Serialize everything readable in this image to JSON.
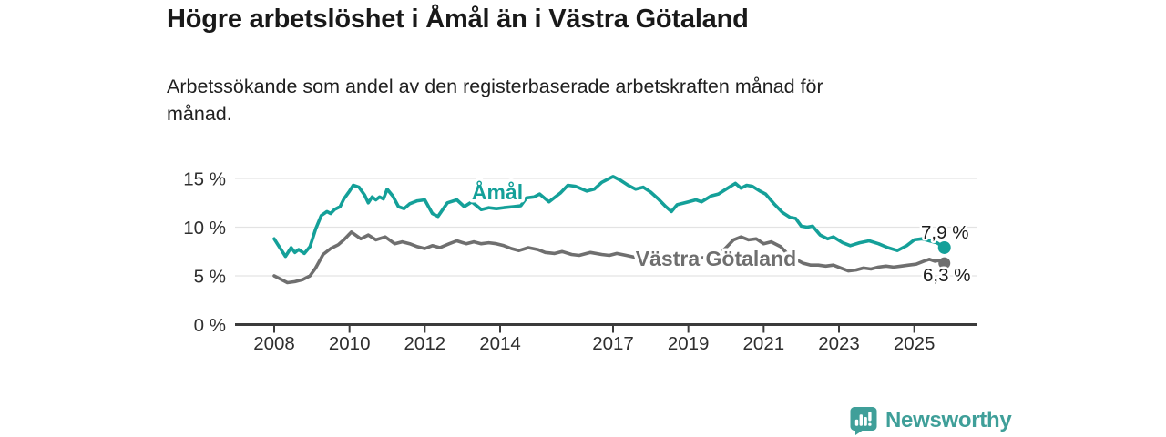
{
  "header": {
    "title": "Högre arbetslöshet i Åmål än i Västra Götaland",
    "subtitle_lines": [
      "Arbetssökande som andel av den registerbaserade arbetskraften månad för",
      "månad."
    ]
  },
  "chart_data": {
    "type": "line",
    "title": "Högre arbetslöshet i Åmål än i Västra Götaland",
    "subtitle": "Arbetssökande som andel av den registerbaserade arbetskraften månad för månad.",
    "unit": "% av registerbaserad arbetskraft",
    "grid": true,
    "legend_position": "inline-labels",
    "x_axis": {
      "ticks": [
        2008,
        2010,
        2012,
        2014,
        2017,
        2019,
        2021,
        2023,
        2025
      ],
      "range": [
        2007.9,
        2026.4
      ]
    },
    "y_axis": {
      "ticks": [
        {
          "value": 0,
          "label": "0 %"
        },
        {
          "value": 5,
          "label": "5 %"
        },
        {
          "value": 10,
          "label": "10 %"
        },
        {
          "value": 15,
          "label": "15 %"
        }
      ],
      "range": [
        0,
        16.5
      ]
    },
    "series": [
      {
        "key": "vastra-gotaland",
        "name": "Västra Götaland",
        "color": "#6f6f6f",
        "inline_label": "Västra Götaland",
        "end_label": "6,3 %",
        "end_value": 6.3,
        "points": [
          [
            2008.0,
            5.0
          ],
          [
            2008.15,
            4.7
          ],
          [
            2008.35,
            4.3
          ],
          [
            2008.55,
            4.4
          ],
          [
            2008.75,
            4.6
          ],
          [
            2008.95,
            5.0
          ],
          [
            2009.1,
            5.8
          ],
          [
            2009.3,
            7.2
          ],
          [
            2009.5,
            7.8
          ],
          [
            2009.7,
            8.2
          ],
          [
            2009.85,
            8.7
          ],
          [
            2010.05,
            9.5
          ],
          [
            2010.3,
            8.8
          ],
          [
            2010.5,
            9.2
          ],
          [
            2010.7,
            8.7
          ],
          [
            2010.95,
            9.0
          ],
          [
            2011.2,
            8.3
          ],
          [
            2011.4,
            8.5
          ],
          [
            2011.6,
            8.3
          ],
          [
            2011.8,
            8.0
          ],
          [
            2012.0,
            7.8
          ],
          [
            2012.2,
            8.1
          ],
          [
            2012.4,
            7.9
          ],
          [
            2012.65,
            8.3
          ],
          [
            2012.85,
            8.6
          ],
          [
            2013.1,
            8.3
          ],
          [
            2013.3,
            8.5
          ],
          [
            2013.5,
            8.3
          ],
          [
            2013.7,
            8.4
          ],
          [
            2013.9,
            8.3
          ],
          [
            2014.1,
            8.1
          ],
          [
            2014.3,
            7.8
          ],
          [
            2014.5,
            7.6
          ],
          [
            2014.75,
            7.9
          ],
          [
            2015.0,
            7.7
          ],
          [
            2015.2,
            7.4
          ],
          [
            2015.45,
            7.3
          ],
          [
            2015.65,
            7.5
          ],
          [
            2015.9,
            7.2
          ],
          [
            2016.1,
            7.1
          ],
          [
            2016.4,
            7.4
          ],
          [
            2016.7,
            7.2
          ],
          [
            2016.9,
            7.1
          ],
          [
            2017.1,
            7.3
          ],
          [
            2017.35,
            7.1
          ],
          [
            2017.6,
            6.9
          ],
          [
            2017.8,
            7.0
          ],
          [
            2018.0,
            7.1
          ],
          [
            2018.3,
            6.9
          ],
          [
            2018.6,
            6.8
          ],
          [
            2018.9,
            6.9
          ],
          [
            2019.2,
            6.8
          ],
          [
            2019.5,
            6.9
          ],
          [
            2019.8,
            7.1
          ],
          [
            2020.0,
            7.9
          ],
          [
            2020.2,
            8.7
          ],
          [
            2020.4,
            9.0
          ],
          [
            2020.6,
            8.7
          ],
          [
            2020.8,
            8.8
          ],
          [
            2021.0,
            8.3
          ],
          [
            2021.2,
            8.5
          ],
          [
            2021.45,
            8.0
          ],
          [
            2021.65,
            7.2
          ],
          [
            2021.85,
            6.7
          ],
          [
            2022.05,
            6.3
          ],
          [
            2022.25,
            6.1
          ],
          [
            2022.45,
            6.1
          ],
          [
            2022.65,
            6.0
          ],
          [
            2022.85,
            6.1
          ],
          [
            2023.05,
            5.8
          ],
          [
            2023.25,
            5.5
          ],
          [
            2023.45,
            5.6
          ],
          [
            2023.65,
            5.8
          ],
          [
            2023.85,
            5.7
          ],
          [
            2024.05,
            5.9
          ],
          [
            2024.25,
            6.0
          ],
          [
            2024.45,
            5.9
          ],
          [
            2024.65,
            6.0
          ],
          [
            2024.85,
            6.1
          ],
          [
            2025.05,
            6.2
          ],
          [
            2025.25,
            6.5
          ],
          [
            2025.4,
            6.7
          ],
          [
            2025.55,
            6.5
          ],
          [
            2025.7,
            6.6
          ],
          [
            2025.8,
            6.3
          ]
        ]
      },
      {
        "key": "amal",
        "name": "Åmål",
        "color": "#14a099",
        "inline_label": "Åmål",
        "end_label": "7,9 %",
        "end_value": 7.9,
        "points": [
          [
            2008.0,
            8.8
          ],
          [
            2008.1,
            8.2
          ],
          [
            2008.3,
            7.0
          ],
          [
            2008.45,
            7.9
          ],
          [
            2008.55,
            7.4
          ],
          [
            2008.65,
            7.7
          ],
          [
            2008.8,
            7.3
          ],
          [
            2008.95,
            8.0
          ],
          [
            2009.1,
            9.8
          ],
          [
            2009.25,
            11.2
          ],
          [
            2009.4,
            11.6
          ],
          [
            2009.5,
            11.4
          ],
          [
            2009.6,
            11.8
          ],
          [
            2009.75,
            12.1
          ],
          [
            2009.85,
            12.9
          ],
          [
            2010.0,
            13.7
          ],
          [
            2010.1,
            14.3
          ],
          [
            2010.25,
            14.1
          ],
          [
            2010.4,
            13.3
          ],
          [
            2010.5,
            12.5
          ],
          [
            2010.6,
            13.1
          ],
          [
            2010.7,
            12.8
          ],
          [
            2010.8,
            13.1
          ],
          [
            2010.9,
            12.9
          ],
          [
            2011.0,
            13.9
          ],
          [
            2011.15,
            13.2
          ],
          [
            2011.3,
            12.1
          ],
          [
            2011.45,
            11.9
          ],
          [
            2011.6,
            12.4
          ],
          [
            2011.8,
            12.7
          ],
          [
            2012.0,
            12.8
          ],
          [
            2012.2,
            11.4
          ],
          [
            2012.35,
            11.1
          ],
          [
            2012.6,
            12.5
          ],
          [
            2012.85,
            12.8
          ],
          [
            2013.05,
            12.1
          ],
          [
            2013.25,
            12.6
          ],
          [
            2013.5,
            11.8
          ],
          [
            2013.7,
            12.0
          ],
          [
            2013.9,
            11.9
          ],
          [
            2014.1,
            12.0
          ],
          [
            2014.35,
            12.1
          ],
          [
            2014.55,
            12.2
          ],
          [
            2014.7,
            13.0
          ],
          [
            2014.9,
            13.1
          ],
          [
            2015.05,
            13.4
          ],
          [
            2015.3,
            12.6
          ],
          [
            2015.6,
            13.5
          ],
          [
            2015.8,
            14.3
          ],
          [
            2016.0,
            14.2
          ],
          [
            2016.3,
            13.7
          ],
          [
            2016.5,
            13.9
          ],
          [
            2016.7,
            14.6
          ],
          [
            2017.0,
            15.2
          ],
          [
            2017.2,
            14.8
          ],
          [
            2017.4,
            14.3
          ],
          [
            2017.6,
            13.9
          ],
          [
            2017.8,
            14.1
          ],
          [
            2018.0,
            13.6
          ],
          [
            2018.2,
            12.9
          ],
          [
            2018.4,
            12.1
          ],
          [
            2018.55,
            11.6
          ],
          [
            2018.7,
            12.3
          ],
          [
            2019.0,
            12.6
          ],
          [
            2019.2,
            12.8
          ],
          [
            2019.35,
            12.6
          ],
          [
            2019.6,
            13.2
          ],
          [
            2019.8,
            13.4
          ],
          [
            2020.0,
            13.9
          ],
          [
            2020.25,
            14.5
          ],
          [
            2020.4,
            14.0
          ],
          [
            2020.55,
            14.3
          ],
          [
            2020.7,
            14.2
          ],
          [
            2020.9,
            13.7
          ],
          [
            2021.05,
            13.4
          ],
          [
            2021.3,
            12.3
          ],
          [
            2021.5,
            11.5
          ],
          [
            2021.7,
            11.0
          ],
          [
            2021.85,
            10.9
          ],
          [
            2022.0,
            10.1
          ],
          [
            2022.15,
            10.0
          ],
          [
            2022.3,
            10.1
          ],
          [
            2022.5,
            9.2
          ],
          [
            2022.7,
            8.8
          ],
          [
            2022.85,
            9.0
          ],
          [
            2023.1,
            8.4
          ],
          [
            2023.3,
            8.1
          ],
          [
            2023.55,
            8.4
          ],
          [
            2023.8,
            8.6
          ],
          [
            2024.05,
            8.3
          ],
          [
            2024.3,
            7.9
          ],
          [
            2024.55,
            7.6
          ],
          [
            2024.8,
            8.1
          ],
          [
            2025.0,
            8.7
          ],
          [
            2025.2,
            8.8
          ],
          [
            2025.4,
            8.6
          ],
          [
            2025.6,
            8.4
          ],
          [
            2025.8,
            7.9
          ]
        ]
      }
    ]
  },
  "footer": {
    "brand": "Newsworthy"
  },
  "colors": {
    "amal": "#14a099",
    "vastra_gotaland": "#6f6f6f",
    "brand_teal": "#3f9f99",
    "axis": "#3b3b3b",
    "grid": "#e3e3e3",
    "text": "#1a1a1a"
  }
}
